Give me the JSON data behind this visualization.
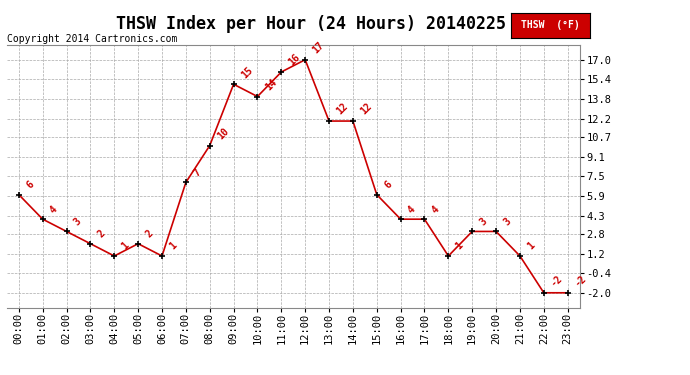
{
  "title": "THSW Index per Hour (24 Hours) 20140225",
  "copyright": "Copyright 2014 Cartronics.com",
  "legend_label": "THSW  (°F)",
  "hours": [
    "00:00",
    "01:00",
    "02:00",
    "03:00",
    "04:00",
    "05:00",
    "06:00",
    "07:00",
    "08:00",
    "09:00",
    "10:00",
    "11:00",
    "12:00",
    "13:00",
    "14:00",
    "15:00",
    "16:00",
    "17:00",
    "18:00",
    "19:00",
    "20:00",
    "21:00",
    "22:00",
    "23:00"
  ],
  "values": [
    6,
    4,
    3,
    2,
    1,
    2,
    1,
    7,
    10,
    15,
    14,
    16,
    17,
    12,
    12,
    6,
    4,
    4,
    1,
    3,
    3,
    1,
    -2,
    -2
  ],
  "line_color": "#cc0000",
  "marker_color": "#000000",
  "background_color": "#ffffff",
  "grid_color": "#aaaaaa",
  "yticks": [
    -2.0,
    -0.4,
    1.2,
    2.8,
    4.3,
    5.9,
    7.5,
    9.1,
    10.7,
    12.2,
    13.8,
    15.4,
    17.0
  ],
  "ylim": [
    -3.2,
    18.2
  ],
  "title_fontsize": 12,
  "label_fontsize": 7.5,
  "copyright_fontsize": 7,
  "legend_bg": "#cc0000",
  "legend_text_color": "#ffffff",
  "annotation_fontsize": 7
}
